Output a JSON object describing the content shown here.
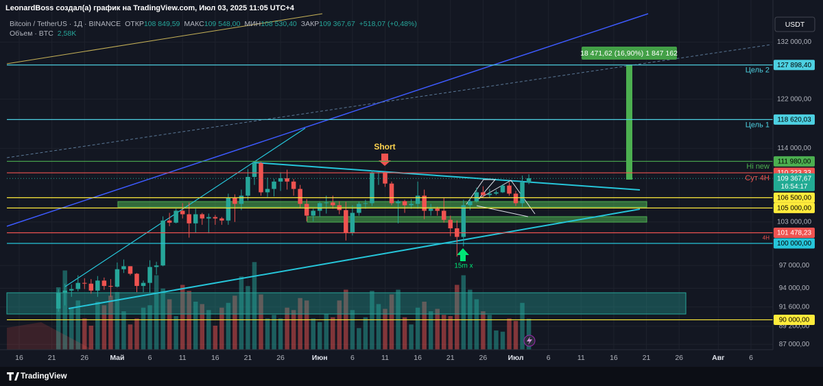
{
  "header": {
    "author_line": "LeonardBoss создал(а) график на TradingView.com, Июл 03, 2025 11:05 UTC+4",
    "symbol": "Bitcoin / TetherUS · 1Д · BINANCE",
    "ohlc": [
      {
        "label": "ОТКР",
        "value": "108 849,59"
      },
      {
        "label": "МАКС",
        "value": "109 548,00"
      },
      {
        "label": "МИН",
        "value": "108 530,40"
      },
      {
        "label": "ЗАКР",
        "value": "109 367,67"
      }
    ],
    "change": "+518,07 (+0,48%)",
    "volume_label": "Объем · BTC",
    "volume_value": "2,58K",
    "currency": "USDT"
  },
  "chart_data": {
    "type": "candlestick",
    "x": [
      6,
      7,
      8,
      9,
      10,
      11,
      12,
      13,
      14,
      15,
      16,
      17,
      18,
      19,
      20,
      21,
      22,
      23,
      24,
      25,
      26,
      27,
      28,
      29,
      30,
      31,
      32,
      33,
      34,
      35,
      36,
      37,
      38,
      39,
      40,
      41,
      42,
      43,
      44,
      45,
      46,
      47,
      48,
      49,
      50,
      51,
      52,
      53,
      54,
      55,
      56,
      57,
      58,
      59,
      60,
      61,
      62,
      63,
      64,
      65,
      66,
      67,
      68,
      69,
      70,
      71,
      72,
      73,
      74,
      75,
      76,
      77,
      78
    ],
    "open": [
      91400,
      93400,
      93700,
      93900,
      94700,
      94600,
      93700,
      95000,
      94300,
      94200,
      96500,
      96900,
      95900,
      94300,
      94700,
      96800,
      97000,
      103200,
      102900,
      104600,
      104100,
      102800,
      104100,
      103500,
      103700,
      103500,
      103200,
      106500,
      105600,
      106800,
      109600,
      111700,
      107300,
      107800,
      108900,
      109400,
      108900,
      107800,
      105600,
      103900,
      104600,
      105700,
      105800,
      105400,
      104700,
      101500,
      104300,
      105600,
      105700,
      110300,
      110300,
      108600,
      105700,
      106000,
      105400,
      105600,
      106800,
      104600,
      104900,
      104600,
      103300,
      102100,
      100900,
      105400,
      106000,
      107300,
      106900,
      107100,
      107300,
      108300,
      107100,
      105700,
      108800
    ],
    "high": [
      93900,
      94600,
      94500,
      95700,
      95300,
      95200,
      95600,
      95400,
      95200,
      97400,
      97800,
      96900,
      96000,
      95000,
      97700,
      97500,
      103800,
      104300,
      104900,
      105700,
      105800,
      104900,
      104300,
      104200,
      104000,
      103700,
      107100,
      107000,
      107700,
      110800,
      112000,
      111900,
      109500,
      109300,
      110300,
      110700,
      109300,
      108400,
      106300,
      104900,
      105900,
      106800,
      106800,
      106000,
      105900,
      105400,
      105900,
      106200,
      110600,
      110400,
      110400,
      108900,
      106200,
      106200,
      106300,
      108900,
      107700,
      105600,
      105200,
      106500,
      103900,
      103200,
      106200,
      106400,
      108000,
      108200,
      107800,
      107600,
      108500,
      108800,
      107500,
      109800,
      110000
    ],
    "low": [
      91000,
      91800,
      92900,
      93600,
      93900,
      93300,
      92900,
      93800,
      92900,
      94100,
      96000,
      95700,
      93500,
      93500,
      93400,
      95800,
      96900,
      102400,
      102800,
      103500,
      100800,
      101500,
      102600,
      101400,
      102600,
      102600,
      102600,
      103000,
      104700,
      106100,
      108400,
      106800,
      106600,
      106700,
      107500,
      107700,
      106800,
      105000,
      103100,
      103100,
      103700,
      104200,
      104900,
      104100,
      100400,
      101100,
      103900,
      104900,
      105300,
      108400,
      108100,
      105400,
      102800,
      104300,
      104900,
      104900,
      103400,
      103900,
      103900,
      102900,
      101000,
      98200,
      99600,
      104700,
      105800,
      106500,
      106500,
      106900,
      107200,
      106800,
      105300,
      105100,
      108500
    ],
    "close": [
      93400,
      93700,
      93900,
      94700,
      94600,
      93700,
      95000,
      94300,
      94200,
      96500,
      96900,
      95900,
      94300,
      94700,
      96800,
      97000,
      103200,
      102900,
      104600,
      104100,
      102800,
      104100,
      103500,
      103700,
      103500,
      103200,
      106500,
      105600,
      106800,
      109600,
      111700,
      107300,
      107800,
      108900,
      109400,
      108900,
      107800,
      105600,
      103900,
      104600,
      105700,
      105800,
      105400,
      104700,
      101500,
      104300,
      105600,
      105700,
      110300,
      110300,
      108600,
      105700,
      106000,
      105400,
      105600,
      106800,
      104600,
      104900,
      104600,
      103300,
      102100,
      100900,
      105400,
      106000,
      107300,
      106900,
      107100,
      107300,
      108300,
      107100,
      105700,
      108800,
      109400
    ],
    "volume": [
      5.2,
      6.6,
      3.5,
      4.1,
      2.6,
      2.0,
      4.0,
      3.7,
      4.5,
      4.8,
      3.2,
      2.1,
      2.6,
      3.5,
      3.7,
      6.2,
      5.1,
      4.2,
      2.8,
      5.4,
      4.9,
      4.0,
      3.8,
      3.3,
      2.0,
      3.5,
      3.9,
      4.5,
      6.1,
      5.3,
      7.3,
      4.6,
      2.6,
      2.9,
      2.6,
      3.5,
      3.3,
      4.3,
      4.1,
      2.6,
      2.3,
      3.0,
      2.7,
      4.1,
      5.0,
      3.3,
      1.8,
      2.7,
      4.9,
      3.8,
      3.4,
      4.6,
      5.0,
      2.7,
      2.1,
      3.5,
      4.0,
      3.2,
      3.4,
      2.9,
      2.8,
      5.4,
      6.2,
      5.0,
      4.2,
      3.2,
      2.9,
      1.6,
      1.5,
      2.6,
      2.4,
      3.9,
      2.58
    ],
    "volume_lim": [
      0,
      8
    ],
    "up_color": "#26a69a",
    "down_color": "#ef5350",
    "xlim": [
      -2.94,
      115.36
    ],
    "xticks": [
      {
        "value": 0,
        "label": "16"
      },
      {
        "value": 5,
        "label": "21"
      },
      {
        "value": 10,
        "label": "26"
      },
      {
        "value": 15,
        "label": "Май"
      },
      {
        "value": 20,
        "label": "6"
      },
      {
        "value": 25,
        "label": "11"
      },
      {
        "value": 30,
        "label": "16"
      },
      {
        "value": 35,
        "label": "21"
      },
      {
        "value": 40,
        "label": "26"
      },
      {
        "value": 46,
        "label": "Июн"
      },
      {
        "value": 51,
        "label": "6"
      },
      {
        "value": 56,
        "label": "11"
      },
      {
        "value": 61,
        "label": "16"
      },
      {
        "value": 66,
        "label": "21"
      },
      {
        "value": 71,
        "label": "26"
      },
      {
        "value": 76,
        "label": "Июл"
      },
      {
        "value": 81,
        "label": "6"
      },
      {
        "value": 86,
        "label": "11"
      },
      {
        "value": 91,
        "label": "16"
      },
      {
        "value": 96,
        "label": "21"
      },
      {
        "value": 101,
        "label": "26"
      },
      {
        "value": 107,
        "label": "Авг"
      },
      {
        "value": 112,
        "label": "6"
      }
    ],
    "ylim": [
      86370,
      137260
    ],
    "log_scale": true,
    "grid": true,
    "yticks": [
      {
        "value": 132000,
        "label": "132 000,00"
      },
      {
        "value": 122000,
        "label": "122 000,00"
      },
      {
        "value": 114000,
        "label": "114 000,00"
      },
      {
        "value": 103000,
        "label": "103 000,00"
      },
      {
        "value": 97000,
        "label": "97 000,00"
      },
      {
        "value": 94000,
        "label": "94 000,00"
      },
      {
        "value": 91600,
        "label": "91 600,00"
      },
      {
        "value": 89200,
        "label": "89 200,00"
      },
      {
        "value": 87000,
        "label": "87 000,00"
      }
    ],
    "levels": [
      {
        "value": 127898.4,
        "label": "127 898,40",
        "color": "#4dd0e1",
        "tag": "Цель 2"
      },
      {
        "value": 118620.03,
        "label": "118 620,03",
        "color": "#4dd0e1",
        "tag": "Цель 1"
      },
      {
        "value": 111980,
        "label": "111 980,00",
        "color": "#4caf50",
        "tag": "Hi new"
      },
      {
        "value": 110223.33,
        "label": "110 223,33",
        "color": "#ef5350",
        "tag": "Сут 4Н"
      },
      {
        "value": 106500,
        "label": "106 500,00",
        "color": "#ffeb3b"
      },
      {
        "value": 105000,
        "label": "105 000,00",
        "color": "#ffeb3b"
      },
      {
        "value": 101478.23,
        "label": "101 478,23",
        "color": "#ef5350",
        "tag": "4H"
      },
      {
        "value": 100000,
        "label": "100 000,00",
        "color": "#26c6da"
      },
      {
        "value": 90000,
        "label": "90 000,00",
        "color": "#ffeb3b"
      }
    ],
    "last": {
      "value": 109367.67,
      "label": "109 367,67",
      "color": "#22ab94",
      "countdown": "16:54:17"
    },
    "annotations": {
      "short": "Short",
      "entry": "15m x",
      "measure": "18 471,62 (16,90%) 1 847 162"
    }
  },
  "footer": {
    "brand": "TradingView"
  }
}
